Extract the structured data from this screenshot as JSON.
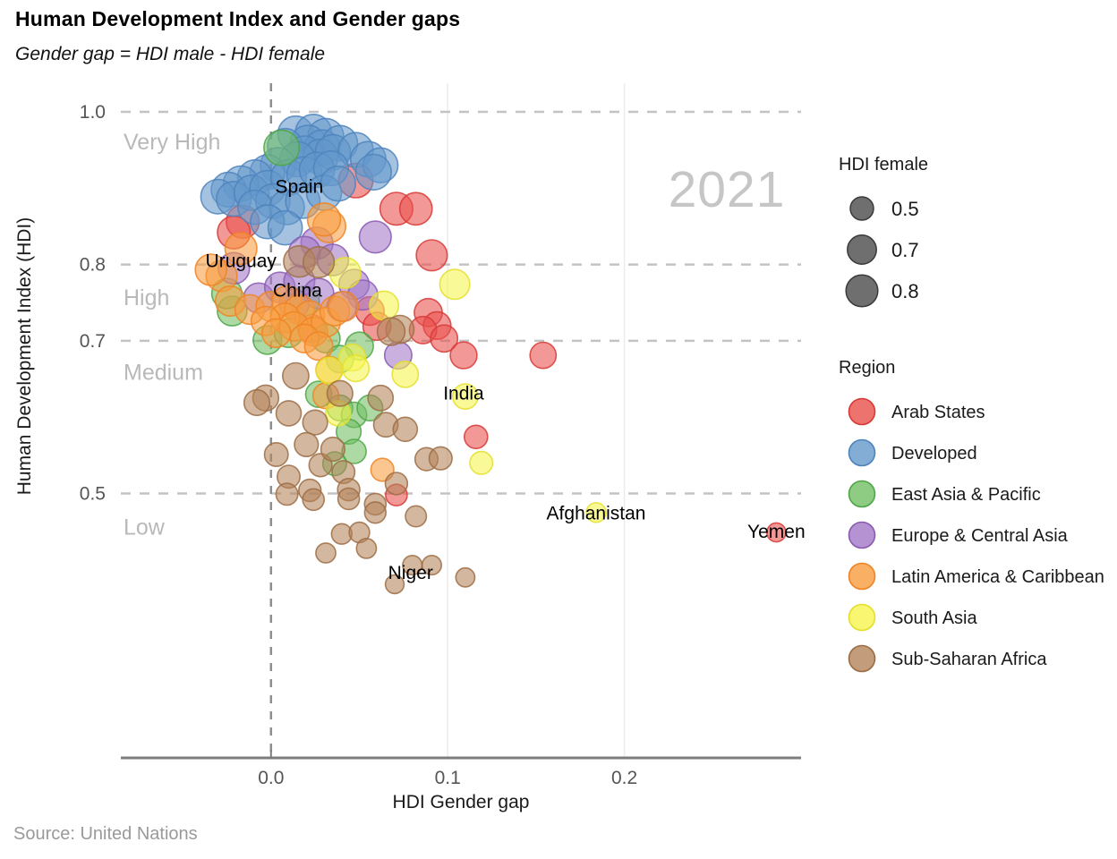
{
  "page": {
    "title": "Human Development Index and Gender gaps",
    "subtitle": "Gender gap =  HDI male - HDI female",
    "watermark": "2021",
    "source": "Source: United Nations"
  },
  "size_legend": {
    "title": "HDI female",
    "entries": [
      {
        "label": "0.5",
        "value": 0.5
      },
      {
        "label": "0.7",
        "value": 0.7
      },
      {
        "label": "0.8",
        "value": 0.8
      }
    ]
  },
  "region_legend": {
    "title": "Region"
  },
  "chart_data": {
    "type": "scatter",
    "title": "Human Development Index and Gender gaps",
    "xlabel": "HDI Gender gap",
    "ylabel": "Human Development Index (HDI)",
    "xlim": [
      -0.085,
      0.3
    ],
    "ylim": [
      0.1535,
      1.0375
    ],
    "x_ticks": [
      {
        "label": "0.0",
        "value": 0.0
      },
      {
        "label": "0.1",
        "value": 0.1
      },
      {
        "label": "0.2",
        "value": 0.2
      }
    ],
    "y_ticks": [
      {
        "label": "1.0",
        "value": 1.0
      },
      {
        "label": "0.8",
        "value": 0.8
      },
      {
        "label": "0.7",
        "value": 0.7
      },
      {
        "label": "0.5",
        "value": 0.5
      }
    ],
    "grid_dashed_hlines": [
      1.0,
      0.8,
      0.7,
      0.5
    ],
    "zero_vline": 0.0,
    "band_labels": [
      {
        "label": "Very High",
        "value": 0.951
      },
      {
        "label": "High",
        "value": 0.747
      },
      {
        "label": "Medium",
        "value": 0.649
      },
      {
        "label": "Low",
        "value": 0.446
      }
    ],
    "annotations": [
      {
        "label": "Spain",
        "x": 0.016,
        "y": 0.902
      },
      {
        "label": "Uruguay",
        "x": -0.017,
        "y": 0.805
      },
      {
        "label": "China",
        "x": 0.015,
        "y": 0.766
      },
      {
        "label": "India",
        "x": 0.109,
        "y": 0.631
      },
      {
        "label": "Afghanistan",
        "x": 0.184,
        "y": 0.474
      },
      {
        "label": "Yemen",
        "x": 0.286,
        "y": 0.45
      },
      {
        "label": "Niger",
        "x": 0.079,
        "y": 0.396
      }
    ],
    "point_format": [
      "gender_gap",
      "hdi",
      "hdi_female"
    ],
    "regions": [
      {
        "name": "Arab States",
        "color": "#e8504b",
        "stroke": "#d73a36",
        "points": [
          [
            -0.016,
            0.856,
            0.84
          ],
          [
            -0.021,
            0.842,
            0.83
          ],
          [
            0.048,
            0.91,
            0.89
          ],
          [
            0.071,
            0.873,
            0.83
          ],
          [
            0.082,
            0.873,
            0.82
          ],
          [
            0.091,
            0.812,
            0.77
          ],
          [
            0.023,
            0.716,
            0.66
          ],
          [
            0.056,
            0.739,
            0.68
          ],
          [
            0.06,
            0.719,
            0.66
          ],
          [
            0.089,
            0.737,
            0.66
          ],
          [
            0.094,
            0.72,
            0.65
          ],
          [
            0.086,
            0.714,
            0.64
          ],
          [
            0.098,
            0.703,
            0.63
          ],
          [
            0.109,
            0.681,
            0.62
          ],
          [
            0.154,
            0.681,
            0.6
          ],
          [
            0.116,
            0.574,
            0.5
          ],
          [
            0.071,
            0.498,
            0.44
          ],
          [
            0.286,
            0.449,
            0.35
          ]
        ]
      },
      {
        "name": "Developed",
        "color": "#6498cb",
        "stroke": "#4d84bc",
        "points": [
          [
            0.014,
            0.971,
            0.94
          ],
          [
            0.024,
            0.973,
            0.95
          ],
          [
            0.031,
            0.968,
            0.93
          ],
          [
            0.021,
            0.959,
            0.94
          ],
          [
            0.008,
            0.955,
            0.92
          ],
          [
            0.029,
            0.953,
            0.93
          ],
          [
            0.039,
            0.959,
            0.92
          ],
          [
            0.019,
            0.945,
            0.93
          ],
          [
            0.028,
            0.941,
            0.92
          ],
          [
            0.035,
            0.947,
            0.91
          ],
          [
            0.048,
            0.95,
            0.9
          ],
          [
            0.055,
            0.938,
            0.92
          ],
          [
            0.062,
            0.93,
            0.9
          ],
          [
            0.058,
            0.921,
            0.93
          ],
          [
            0.015,
            0.938,
            0.91
          ],
          [
            0.004,
            0.93,
            0.92
          ],
          [
            -0.002,
            0.921,
            0.9
          ],
          [
            -0.009,
            0.914,
            0.91
          ],
          [
            -0.017,
            0.906,
            0.92
          ],
          [
            -0.024,
            0.898,
            0.9
          ],
          [
            -0.03,
            0.889,
            0.89
          ],
          [
            -0.021,
            0.886,
            0.9
          ],
          [
            -0.011,
            0.894,
            0.91
          ],
          [
            -0.002,
            0.9,
            0.92
          ],
          [
            0.01,
            0.914,
            0.93
          ],
          [
            0.019,
            0.918,
            0.92
          ],
          [
            0.026,
            0.924,
            0.91
          ],
          [
            0.034,
            0.926,
            0.9
          ],
          [
            0.001,
            0.883,
            0.89
          ],
          [
            -0.009,
            0.875,
            0.88
          ],
          [
            0.009,
            0.875,
            0.9
          ],
          [
            0.018,
            0.883,
            0.89
          ],
          [
            0.03,
            0.894,
            0.91
          ],
          [
            0.038,
            0.906,
            0.9
          ],
          [
            -0.002,
            0.856,
            0.87
          ],
          [
            0.008,
            0.848,
            0.88
          ]
        ]
      },
      {
        "name": "East Asia & Pacific",
        "color": "#71bf63",
        "stroke": "#4ea647",
        "points": [
          [
            0.006,
            0.953,
            0.92
          ],
          [
            -0.022,
            0.739,
            0.72
          ],
          [
            -0.025,
            0.762,
            0.74
          ],
          [
            -0.002,
            0.701,
            0.68
          ],
          [
            0.01,
            0.71,
            0.69
          ],
          [
            0.019,
            0.752,
            0.72
          ],
          [
            0.05,
            0.693,
            0.66
          ],
          [
            0.031,
            0.703,
            0.68
          ],
          [
            0.039,
            0.676,
            0.64
          ],
          [
            0.027,
            0.63,
            0.6
          ],
          [
            0.039,
            0.612,
            0.58
          ],
          [
            0.047,
            0.603,
            0.57
          ],
          [
            0.056,
            0.612,
            0.58
          ],
          [
            0.044,
            0.581,
            0.55
          ],
          [
            0.047,
            0.555,
            0.53
          ],
          [
            0.036,
            0.539,
            0.51
          ]
        ]
      },
      {
        "name": "Europe & Central Asia",
        "color": "#a277c6",
        "stroke": "#8a5bb3",
        "points": [
          [
            0.059,
            0.836,
            0.8
          ],
          [
            0.026,
            0.828,
            0.8
          ],
          [
            0.019,
            0.816,
            0.79
          ],
          [
            0.035,
            0.806,
            0.78
          ],
          [
            -0.021,
            0.795,
            0.78
          ],
          [
            -0.007,
            0.756,
            0.74
          ],
          [
            0.005,
            0.77,
            0.75
          ],
          [
            0.016,
            0.778,
            0.76
          ],
          [
            0.047,
            0.774,
            0.74
          ],
          [
            0.052,
            0.76,
            0.73
          ],
          [
            0.027,
            0.762,
            0.74
          ],
          [
            0.013,
            0.748,
            0.72
          ],
          [
            0.072,
            0.681,
            0.64
          ],
          [
            0.04,
            0.745,
            0.72
          ]
        ]
      },
      {
        "name": "Latin America & Caribbean",
        "color": "#f89c3f",
        "stroke": "#ee8423",
        "points": [
          [
            -0.028,
            0.785,
            0.77
          ],
          [
            -0.017,
            0.821,
            0.8
          ],
          [
            -0.034,
            0.793,
            0.78
          ],
          [
            0.033,
            0.85,
            0.83
          ],
          [
            0.03,
            0.859,
            0.84
          ],
          [
            -0.023,
            0.752,
            0.73
          ],
          [
            -0.012,
            0.741,
            0.72
          ],
          [
            0.0,
            0.745,
            0.73
          ],
          [
            0.009,
            0.752,
            0.74
          ],
          [
            0.016,
            0.741,
            0.72
          ],
          [
            0.022,
            0.733,
            0.71
          ],
          [
            0.008,
            0.73,
            0.71
          ],
          [
            -0.003,
            0.726,
            0.7
          ],
          [
            0.013,
            0.719,
            0.7
          ],
          [
            0.024,
            0.712,
            0.69
          ],
          [
            0.031,
            0.724,
            0.7
          ],
          [
            0.003,
            0.71,
            0.69
          ],
          [
            0.019,
            0.703,
            0.68
          ],
          [
            0.036,
            0.739,
            0.71
          ],
          [
            0.027,
            0.693,
            0.67
          ],
          [
            0.033,
            0.662,
            0.62
          ],
          [
            0.031,
            0.628,
            0.59
          ],
          [
            0.063,
            0.531,
            0.49
          ],
          [
            0.041,
            0.745,
            0.73
          ]
        ]
      },
      {
        "name": "South Asia",
        "color": "#f7f44e",
        "stroke": "#e3df2c",
        "points": [
          [
            0.042,
            0.789,
            0.76
          ],
          [
            0.104,
            0.774,
            0.73
          ],
          [
            0.064,
            0.746,
            0.7
          ],
          [
            0.046,
            0.678,
            0.62
          ],
          [
            0.048,
            0.664,
            0.61
          ],
          [
            0.076,
            0.656,
            0.6
          ],
          [
            0.11,
            0.627,
            0.57
          ],
          [
            0.119,
            0.54,
            0.48
          ],
          [
            0.038,
            0.605,
            0.56
          ],
          [
            0.033,
            0.661,
            0.61
          ],
          [
            0.184,
            0.475,
            0.37
          ]
        ]
      },
      {
        "name": "Sub-Saharan Africa",
        "color": "#b3835a",
        "stroke": "#9c6d45",
        "points": [
          [
            0.016,
            0.804,
            0.78
          ],
          [
            0.027,
            0.803,
            0.77
          ],
          [
            0.073,
            0.715,
            0.66
          ],
          [
            0.068,
            0.712,
            0.65
          ],
          [
            0.014,
            0.654,
            0.6
          ],
          [
            -0.003,
            0.625,
            0.59
          ],
          [
            -0.008,
            0.619,
            0.58
          ],
          [
            0.01,
            0.605,
            0.56
          ],
          [
            0.039,
            0.631,
            0.58
          ],
          [
            0.062,
            0.625,
            0.57
          ],
          [
            0.025,
            0.593,
            0.55
          ],
          [
            0.02,
            0.564,
            0.52
          ],
          [
            0.028,
            0.537,
            0.49
          ],
          [
            0.01,
            0.522,
            0.48
          ],
          [
            0.022,
            0.504,
            0.46
          ],
          [
            0.041,
            0.528,
            0.48
          ],
          [
            0.044,
            0.505,
            0.46
          ],
          [
            0.059,
            0.486,
            0.44
          ],
          [
            0.065,
            0.59,
            0.54
          ],
          [
            0.076,
            0.584,
            0.53
          ],
          [
            0.088,
            0.545,
            0.49
          ],
          [
            0.096,
            0.546,
            0.49
          ],
          [
            0.071,
            0.513,
            0.46
          ],
          [
            0.082,
            0.47,
            0.42
          ],
          [
            0.009,
            0.499,
            0.45
          ],
          [
            0.024,
            0.492,
            0.44
          ],
          [
            0.044,
            0.493,
            0.44
          ],
          [
            0.059,
            0.475,
            0.43
          ],
          [
            0.04,
            0.447,
            0.4
          ],
          [
            0.05,
            0.449,
            0.4
          ],
          [
            0.054,
            0.428,
            0.38
          ],
          [
            0.031,
            0.422,
            0.38
          ],
          [
            0.08,
            0.406,
            0.36
          ],
          [
            0.091,
            0.406,
            0.36
          ],
          [
            0.11,
            0.39,
            0.35
          ],
          [
            0.07,
            0.381,
            0.34
          ],
          [
            0.003,
            0.551,
            0.51
          ],
          [
            0.035,
            0.558,
            0.52
          ]
        ]
      }
    ]
  }
}
